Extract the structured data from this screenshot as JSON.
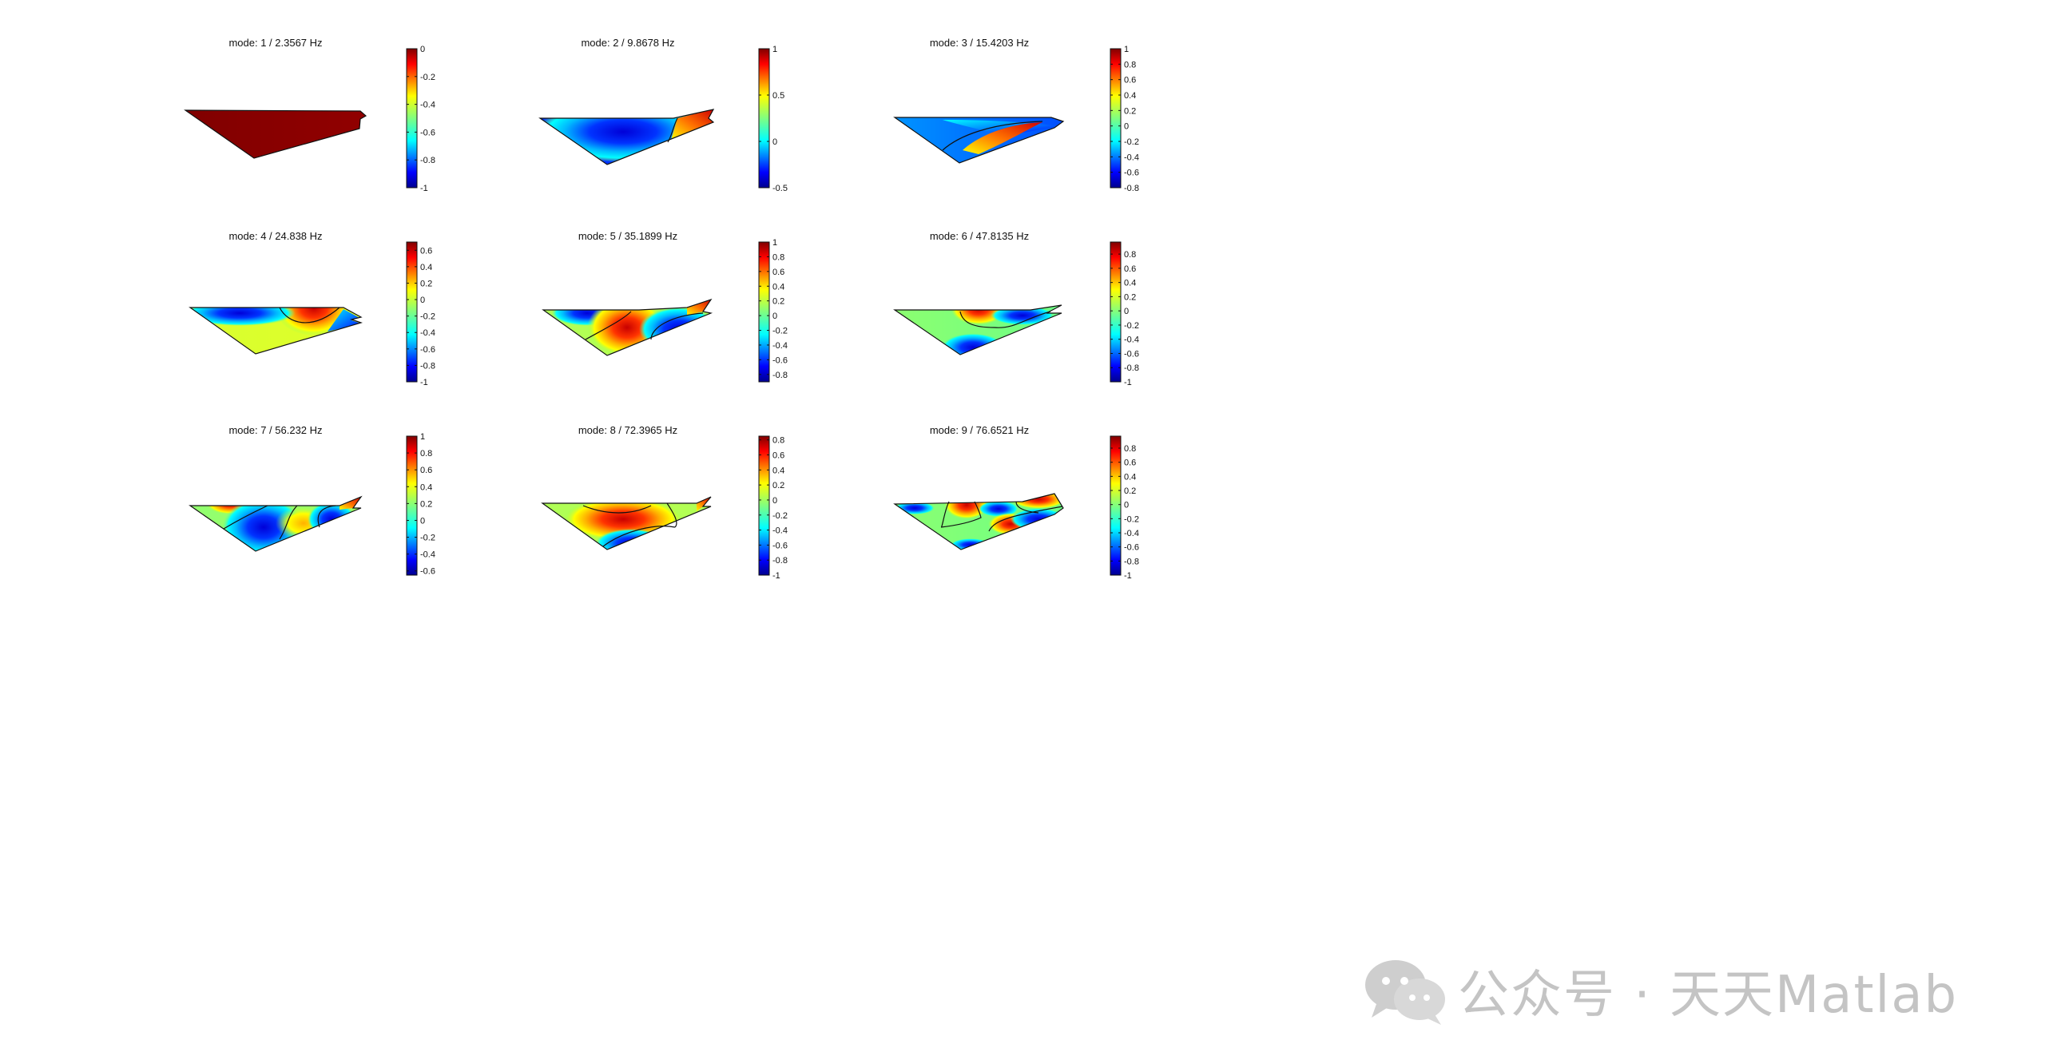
{
  "chart_data": [
    {
      "type": "heatmap",
      "title": "mode: 1 / 2.3567 Hz",
      "xlabel": "",
      "ylabel": "",
      "colormap": "jet",
      "colorbar": {
        "limits": [
          -1,
          0
        ],
        "ticks": [
          0,
          -0.2,
          -0.4,
          -0.6,
          -0.8,
          -1
        ]
      },
      "mode": 1,
      "frequency_hz": 2.3567
    },
    {
      "type": "heatmap",
      "title": "mode: 2 / 9.8678 Hz",
      "xlabel": "",
      "ylabel": "",
      "colormap": "jet",
      "colorbar": {
        "limits": [
          -0.5,
          1
        ],
        "ticks": [
          1,
          0.5,
          0,
          -0.5
        ]
      },
      "mode": 2,
      "frequency_hz": 9.8678
    },
    {
      "type": "heatmap",
      "title": "mode: 3 / 15.4203 Hz",
      "xlabel": "",
      "ylabel": "",
      "colormap": "jet",
      "colorbar": {
        "limits": [
          -0.8,
          1
        ],
        "ticks": [
          1,
          0.8,
          0.6,
          0.4,
          0.2,
          0,
          -0.2,
          -0.4,
          -0.6,
          -0.8
        ]
      },
      "mode": 3,
      "frequency_hz": 15.4203
    },
    {
      "type": "heatmap",
      "title": "mode: 4 / 24.838 Hz",
      "xlabel": "",
      "ylabel": "",
      "colormap": "jet",
      "colorbar": {
        "limits": [
          -1,
          0.7
        ],
        "ticks": [
          0.6,
          0.4,
          0.2,
          0,
          -0.2,
          -0.4,
          -0.6,
          -0.8,
          -1
        ]
      },
      "mode": 4,
      "frequency_hz": 24.838
    },
    {
      "type": "heatmap",
      "title": "mode: 5 / 35.1899 Hz",
      "xlabel": "",
      "ylabel": "",
      "colormap": "jet",
      "colorbar": {
        "limits": [
          -0.9,
          1
        ],
        "ticks": [
          1,
          0.8,
          0.6,
          0.4,
          0.2,
          0,
          -0.2,
          -0.4,
          -0.6,
          -0.8
        ]
      },
      "mode": 5,
      "frequency_hz": 35.1899
    },
    {
      "type": "heatmap",
      "title": "mode: 6 / 47.8135 Hz",
      "xlabel": "",
      "ylabel": "",
      "colormap": "jet",
      "colorbar": {
        "limits": [
          -1,
          0.97
        ],
        "ticks": [
          0.8,
          0.6,
          0.4,
          0.2,
          0,
          -0.2,
          -0.4,
          -0.6,
          -0.8,
          -1
        ]
      },
      "mode": 6,
      "frequency_hz": 47.8135
    },
    {
      "type": "heatmap",
      "title": "mode: 7 / 56.232 Hz",
      "xlabel": "",
      "ylabel": "",
      "colormap": "jet",
      "colorbar": {
        "limits": [
          -0.65,
          1
        ],
        "ticks": [
          1,
          0.8,
          0.6,
          0.4,
          0.2,
          0,
          -0.2,
          -0.4,
          -0.6
        ]
      },
      "mode": 7,
      "frequency_hz": 56.232
    },
    {
      "type": "heatmap",
      "title": "mode: 8 / 72.3965 Hz",
      "xlabel": "",
      "ylabel": "",
      "colormap": "jet",
      "colorbar": {
        "limits": [
          -1,
          0.85
        ],
        "ticks": [
          0.8,
          0.6,
          0.4,
          0.2,
          0,
          -0.2,
          -0.4,
          -0.6,
          -0.8,
          -1
        ]
      },
      "mode": 8,
      "frequency_hz": 72.3965
    },
    {
      "type": "heatmap",
      "title": "mode: 9 / 76.6521 Hz",
      "xlabel": "",
      "ylabel": "",
      "colormap": "jet",
      "colorbar": {
        "limits": [
          -1,
          0.97
        ],
        "ticks": [
          0.8,
          0.6,
          0.4,
          0.2,
          0,
          -0.2,
          -0.4,
          -0.6,
          -0.8,
          -1
        ]
      },
      "mode": 9,
      "frequency_hz": 76.6521
    }
  ],
  "watermark": {
    "text": "公众号 · 天天Matlab",
    "logo_icon": "wechat-logo-icon",
    "color": "#bdbdbd"
  }
}
